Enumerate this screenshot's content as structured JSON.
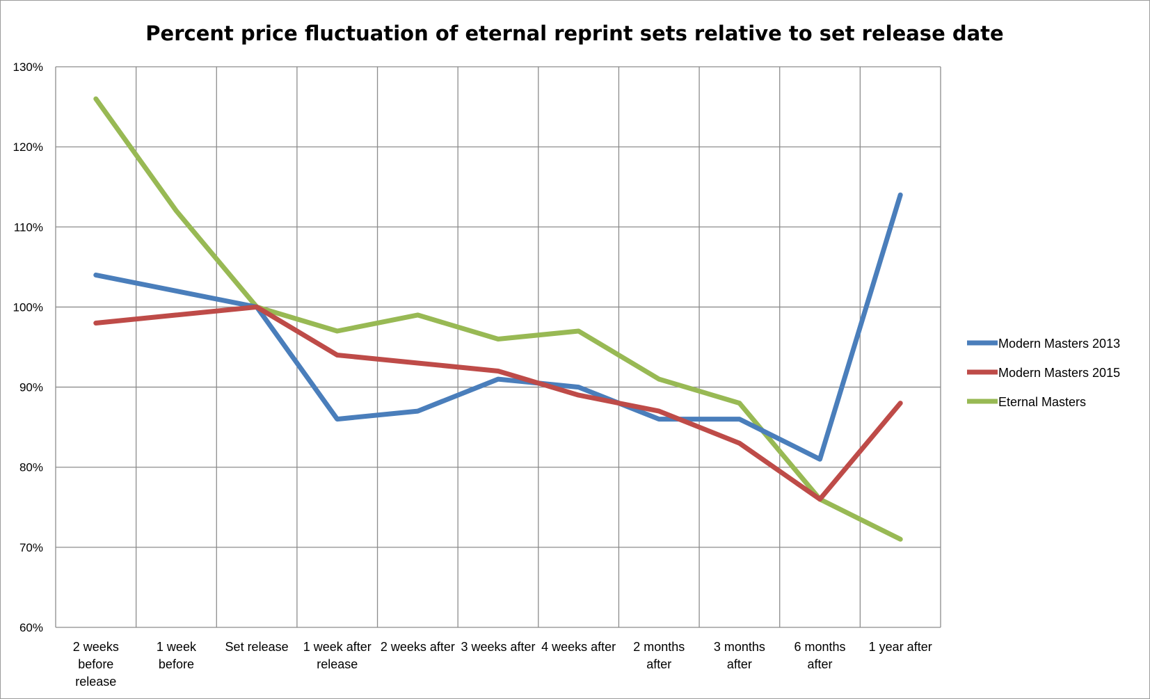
{
  "chart_data": {
    "type": "line",
    "title": "Percent price fluctuation of eternal reprint sets relative to set release date",
    "xlabel": "",
    "ylabel": "",
    "categories": [
      [
        "2 weeks",
        "before",
        "release"
      ],
      [
        "1 week",
        "before"
      ],
      [
        "Set release"
      ],
      [
        "1 week after",
        "release"
      ],
      [
        "2 weeks after"
      ],
      [
        "3 weeks after"
      ],
      [
        "4 weeks after"
      ],
      [
        "2 months",
        "after"
      ],
      [
        "3 months",
        "after"
      ],
      [
        "6 months",
        "after"
      ],
      [
        "1 year after"
      ]
    ],
    "ylim": [
      60,
      130
    ],
    "yticks": [
      60,
      70,
      80,
      90,
      100,
      110,
      120,
      130
    ],
    "ytick_labels": [
      "60%",
      "70%",
      "80%",
      "90%",
      "100%",
      "110%",
      "120%",
      "130%"
    ],
    "grid": true,
    "legend_position": "right",
    "series": [
      {
        "name": "Modern Masters 2013",
        "color": "#4a7ebb",
        "values": [
          104,
          102,
          100,
          86,
          87,
          91,
          90,
          86,
          86,
          81,
          114
        ]
      },
      {
        "name": "Modern Masters 2015",
        "color": "#be4b48",
        "values": [
          98,
          99,
          100,
          94,
          93,
          92,
          89,
          87,
          83,
          76,
          88
        ]
      },
      {
        "name": "Eternal Masters",
        "color": "#98b954",
        "values": [
          126,
          112,
          100,
          97,
          99,
          96,
          97,
          91,
          88,
          76,
          71
        ]
      }
    ]
  }
}
